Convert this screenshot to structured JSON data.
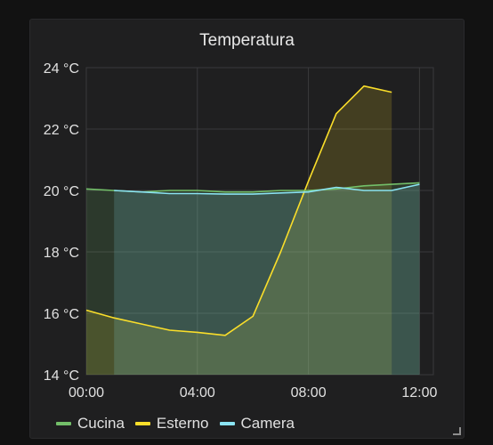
{
  "panel": {
    "title": "Temperatura"
  },
  "colors": {
    "cucina": "#73bf69",
    "esterno": "#fade2a",
    "camera": "#8ae3f2",
    "grid": "#3a3a3c",
    "axis_text": "#e0e0e0"
  },
  "icons": {
    "resize": "resize-corner-icon"
  },
  "chart_data": {
    "type": "area",
    "x_ticks": [
      "00:00",
      "04:00",
      "08:00",
      "12:00"
    ],
    "y_ticks": [
      "14 °C",
      "16 °C",
      "18 °C",
      "20 °C",
      "22 °C",
      "24 °C"
    ],
    "xlim": [
      "00:00",
      "12:30"
    ],
    "ylim": [
      14,
      24
    ],
    "grid": true,
    "legend_position": "bottom-left",
    "series": [
      {
        "name": "Cucina",
        "color": "#73bf69",
        "points": [
          [
            "00:00",
            20.05
          ],
          [
            "01:00",
            20.0
          ],
          [
            "02:00",
            19.95
          ],
          [
            "03:00",
            20.0
          ],
          [
            "04:00",
            20.0
          ],
          [
            "05:00",
            19.95
          ],
          [
            "06:00",
            19.95
          ],
          [
            "07:00",
            20.0
          ],
          [
            "08:00",
            20.0
          ],
          [
            "09:00",
            20.05
          ],
          [
            "10:00",
            20.15
          ],
          [
            "11:00",
            20.2
          ],
          [
            "12:00",
            20.25
          ]
        ]
      },
      {
        "name": "Esterno",
        "color": "#fade2a",
        "points": [
          [
            "00:00",
            16.1
          ],
          [
            "01:00",
            15.85
          ],
          [
            "02:00",
            15.65
          ],
          [
            "03:00",
            15.45
          ],
          [
            "04:00",
            15.38
          ],
          [
            "05:00",
            15.28
          ],
          [
            "06:00",
            15.9
          ],
          [
            "07:00",
            18.0
          ],
          [
            "08:00",
            20.3
          ],
          [
            "09:00",
            22.5
          ],
          [
            "10:00",
            23.4
          ],
          [
            "11:00",
            23.2
          ]
        ]
      },
      {
        "name": "Camera",
        "color": "#8ae3f2",
        "points": [
          [
            "01:00",
            20.0
          ],
          [
            "02:00",
            19.95
          ],
          [
            "03:00",
            19.9
          ],
          [
            "04:00",
            19.9
          ],
          [
            "05:00",
            19.88
          ],
          [
            "06:00",
            19.88
          ],
          [
            "07:00",
            19.92
          ],
          [
            "08:00",
            19.95
          ],
          [
            "09:00",
            20.1
          ],
          [
            "10:00",
            20.0
          ],
          [
            "11:00",
            20.0
          ],
          [
            "12:00",
            20.2
          ]
        ]
      }
    ]
  }
}
